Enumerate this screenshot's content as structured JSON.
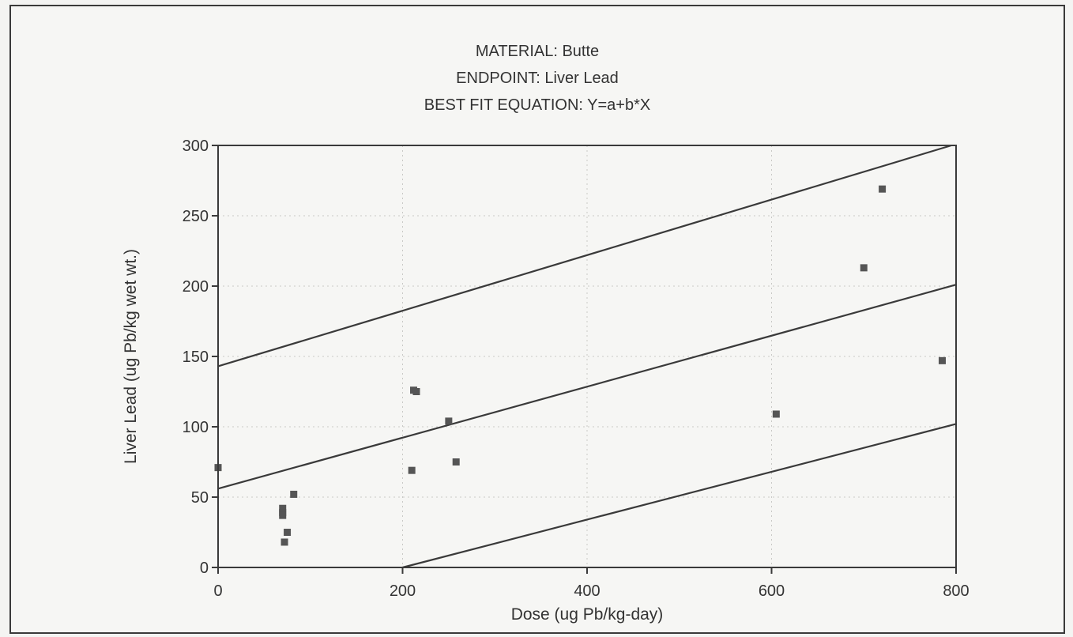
{
  "chart_data": {
    "type": "scatter",
    "title_lines": [
      "MATERIAL:  Butte",
      "ENDPOINT:  Liver Lead",
      "BEST FIT EQUATION:  Y=a+b*X"
    ],
    "xlabel": "Dose (ug Pb/kg-day)",
    "ylabel": "Liver Lead (ug Pb/kg wet wt.)",
    "xlim": [
      0,
      800
    ],
    "ylim": [
      0,
      300
    ],
    "xticks": [
      0,
      200,
      400,
      600,
      800
    ],
    "yticks": [
      0,
      50,
      100,
      150,
      200,
      250,
      300
    ],
    "grid": true,
    "points": [
      {
        "x": 0,
        "y": 71
      },
      {
        "x": 70,
        "y": 42
      },
      {
        "x": 70,
        "y": 39
      },
      {
        "x": 70,
        "y": 37
      },
      {
        "x": 72,
        "y": 18
      },
      {
        "x": 75,
        "y": 25
      },
      {
        "x": 82,
        "y": 52
      },
      {
        "x": 210,
        "y": 69
      },
      {
        "x": 212,
        "y": 126
      },
      {
        "x": 215,
        "y": 125
      },
      {
        "x": 250,
        "y": 104
      },
      {
        "x": 258,
        "y": 75
      },
      {
        "x": 605,
        "y": 109
      },
      {
        "x": 700,
        "y": 213
      },
      {
        "x": 720,
        "y": 269
      },
      {
        "x": 785,
        "y": 147
      }
    ],
    "lines": [
      {
        "role": "upper",
        "a": 143,
        "b": 0.1975
      },
      {
        "role": "fit",
        "a": 56,
        "b": 0.18125
      },
      {
        "role": "lower",
        "a": -34,
        "b": 0.17
      }
    ]
  }
}
